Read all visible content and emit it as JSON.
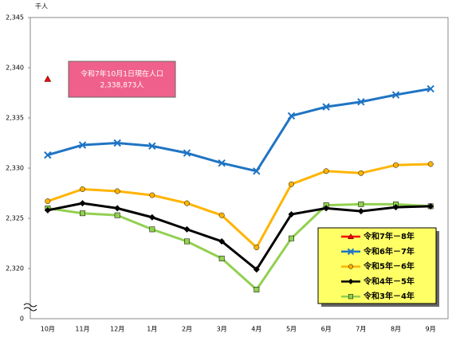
{
  "chart_data": {
    "type": "line",
    "unit_label": "千人",
    "categories": [
      "10月",
      "11月",
      "12月",
      "1月",
      "2月",
      "3月",
      "4月",
      "5月",
      "6月",
      "7月",
      "8月",
      "9月"
    ],
    "ylim": [
      2315,
      2345
    ],
    "yticks": [
      {
        "value": 2320,
        "label": "2,320"
      },
      {
        "value": 2325,
        "label": "2,325"
      },
      {
        "value": 2330,
        "label": "2,330"
      },
      {
        "value": 2335,
        "label": "2,335"
      },
      {
        "value": 2340,
        "label": "2,340"
      },
      {
        "value": 2345,
        "label": "2,345"
      }
    ],
    "axis_break_label": "0",
    "grid": false,
    "legend_position": "lower right",
    "annotation": [
      "令和7年10月1日現在人口",
      "2,338,873人"
    ],
    "series": [
      {
        "name": "令和7年－8年",
        "color": "#ff0000",
        "marker": "triangle",
        "values": [
          2338.873,
          null,
          null,
          null,
          null,
          null,
          null,
          null,
          null,
          null,
          null,
          null
        ]
      },
      {
        "name": "令和6年－7年",
        "color": "#1f74c4",
        "marker": "x",
        "values": [
          2331.3,
          2332.3,
          2332.5,
          2332.2,
          2331.5,
          2330.5,
          2329.7,
          2335.2,
          2336.1,
          2336.6,
          2337.3,
          2337.9
        ]
      },
      {
        "name": "令和5年－6年",
        "color": "#ffb400",
        "marker": "circle",
        "values": [
          2326.7,
          2327.9,
          2327.7,
          2327.3,
          2326.5,
          2325.3,
          2322.1,
          2328.4,
          2329.7,
          2329.5,
          2330.3,
          2330.4
        ]
      },
      {
        "name": "令和4年－5年",
        "color": "#000000",
        "marker": "diamond",
        "values": [
          2325.8,
          2326.5,
          2326.0,
          2325.1,
          2323.9,
          2322.7,
          2319.9,
          2325.4,
          2326.0,
          2325.7,
          2326.1,
          2326.2
        ]
      },
      {
        "name": "令和3年－4年",
        "color": "#92d050",
        "marker": "square",
        "values": [
          2326.0,
          2325.5,
          2325.3,
          2323.9,
          2322.7,
          2321.0,
          2317.9,
          2323.0,
          2326.3,
          2326.4,
          2326.4,
          2326.2
        ]
      }
    ]
  }
}
